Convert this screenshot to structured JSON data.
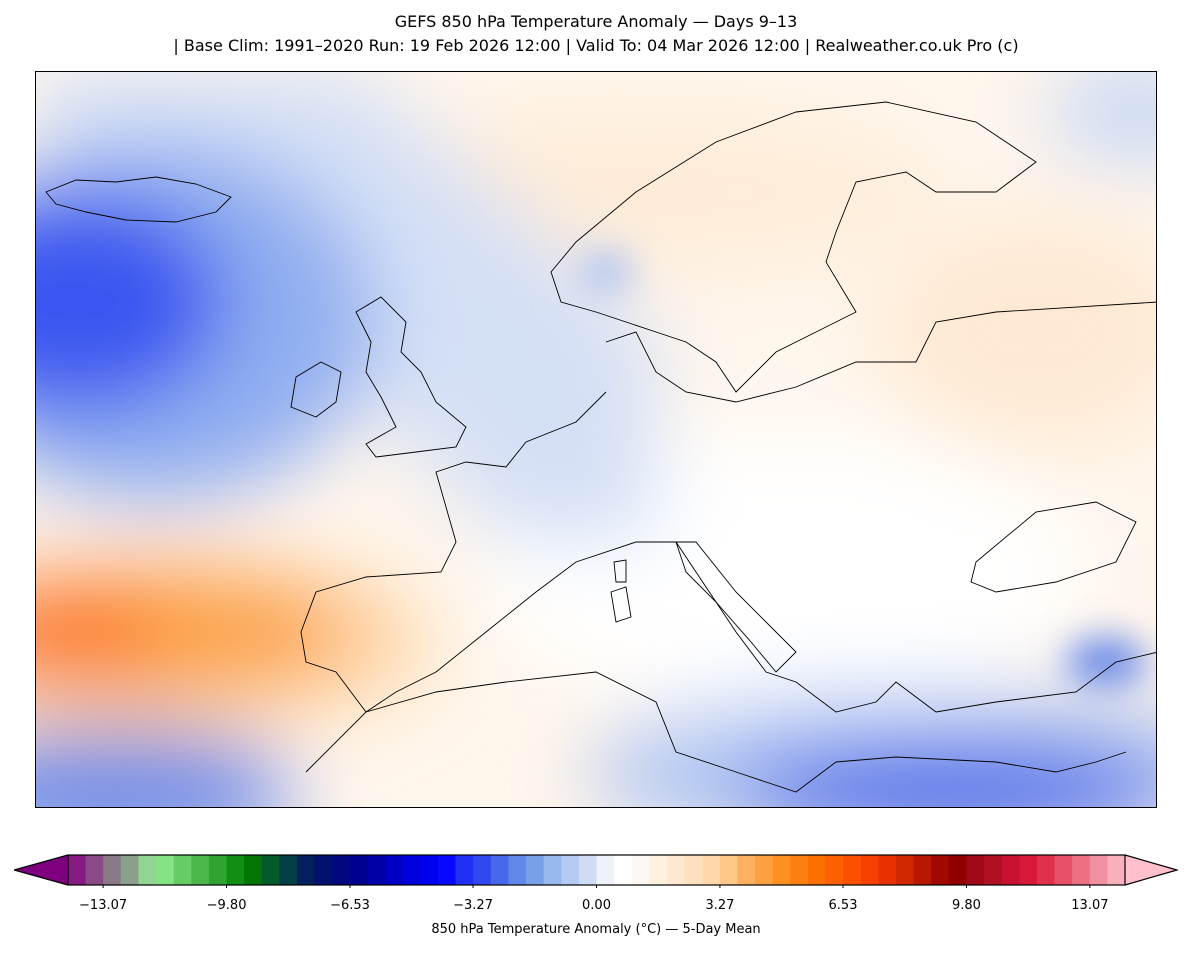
{
  "title": {
    "line1": "GEFS 850 hPa Temperature Anomaly — Days 9–13",
    "line2": "| Base Clim: 1991–2020 Run: 19 Feb 2026 12:00 | Valid To: 04 Mar 2026 12:00 | Realweather.co.uk Pro (c)"
  },
  "colorbar": {
    "label": "850 hPa Temperature Anomaly (°C) — 5-Day Mean",
    "range": [
      -14,
      14
    ],
    "ticks": [
      "−13.07",
      "−9.80",
      "−6.53",
      "−3.27",
      "0.00",
      "3.27",
      "6.53",
      "9.80",
      "13.07"
    ],
    "tick_values": [
      -13.07,
      -9.8,
      -6.53,
      -3.27,
      0,
      3.27,
      6.53,
      9.8,
      13.07
    ],
    "extend_low_color": "#7f007f",
    "extend_high_color": "#ffc0cb",
    "colors": [
      "#861a80",
      "#8a4a86",
      "#8a7a88",
      "#8aa08a",
      "#92d492",
      "#84e484",
      "#66cc66",
      "#4ab84a",
      "#2ea52e",
      "#128e12",
      "#027502",
      "#035a2a",
      "#033f44",
      "#03205e",
      "#021070",
      "#01087e",
      "#00008e",
      "#0000a8",
      "#0000c4",
      "#0000dc",
      "#0000f0",
      "#0808ff",
      "#2030f5",
      "#3048ef",
      "#4868ea",
      "#6088e8",
      "#78a0e8",
      "#98b8ee",
      "#b4caf2",
      "#d0dcf5",
      "#eef2fb",
      "#ffffff",
      "#fff8f2",
      "#fff0e0",
      "#fee8d2",
      "#fee0c0",
      "#fed8aa",
      "#fec888",
      "#fcb060",
      "#fca040",
      "#fc9020",
      "#fc8010",
      "#fc7000",
      "#fc6000",
      "#fc5000",
      "#f84000",
      "#e83000",
      "#d02800",
      "#b81800",
      "#a00800",
      "#900000",
      "#a00818",
      "#b01024",
      "#c81030",
      "#d81838",
      "#e0304c",
      "#e85068",
      "#ec7080",
      "#f090a0",
      "#f8b0bc"
    ]
  }
}
